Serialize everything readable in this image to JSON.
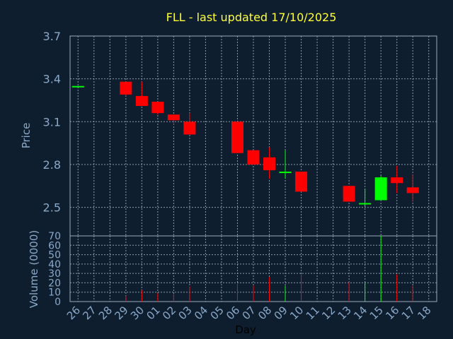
{
  "chart_data": {
    "type": "candlestick",
    "title": "FLL - last updated 17/10/2025",
    "xlabel": "Day",
    "ylabel": "Price",
    "volume_label": "Volume (0000)",
    "x_ticks": [
      "26",
      "27",
      "28",
      "29",
      "30",
      "01",
      "02",
      "03",
      "04",
      "05",
      "06",
      "07",
      "08",
      "09",
      "10",
      "11",
      "12",
      "13",
      "14",
      "15",
      "16",
      "17",
      "18"
    ],
    "price_ylim": [
      2.3,
      3.7
    ],
    "price_ticks": [
      "2.5",
      "2.8",
      "3.1",
      "3.4",
      "3.7"
    ],
    "volume_ylim": [
      0,
      70
    ],
    "volume_ticks": [
      "0",
      "10",
      "20",
      "30",
      "40",
      "50",
      "60",
      "70"
    ],
    "grid": true,
    "colors": {
      "up": "#00ff00",
      "down": "#ff0000",
      "title": "#ffff33",
      "axis_text": "#8aa9c8"
    },
    "candles": [
      {
        "day": "26",
        "open": 3.35,
        "high": 3.35,
        "low": 3.35,
        "close": 3.35,
        "volume": 0
      },
      {
        "day": "29",
        "open": 3.38,
        "high": 3.38,
        "low": 3.28,
        "close": 3.29,
        "volume": 6
      },
      {
        "day": "30",
        "open": 3.28,
        "high": 3.38,
        "low": 3.21,
        "close": 3.21,
        "volume": 12
      },
      {
        "day": "01",
        "open": 3.24,
        "high": 3.24,
        "low": 3.15,
        "close": 3.16,
        "volume": 9
      },
      {
        "day": "02",
        "open": 3.15,
        "high": 3.15,
        "low": 3.08,
        "close": 3.11,
        "volume": 8
      },
      {
        "day": "03",
        "open": 3.1,
        "high": 3.16,
        "low": 3.01,
        "close": 3.01,
        "volume": 16
      },
      {
        "day": "06",
        "open": 3.1,
        "high": 3.1,
        "low": 2.88,
        "close": 2.88,
        "volume": 19
      },
      {
        "day": "07",
        "open": 2.9,
        "high": 2.9,
        "low": 2.8,
        "close": 2.8,
        "volume": 17
      },
      {
        "day": "08",
        "open": 2.85,
        "high": 2.92,
        "low": 2.7,
        "close": 2.76,
        "volume": 26
      },
      {
        "day": "09",
        "open": 2.74,
        "high": 2.9,
        "low": 2.7,
        "close": 2.75,
        "volume": 17
      },
      {
        "day": "10",
        "open": 2.75,
        "high": 2.75,
        "low": 2.61,
        "close": 2.61,
        "volume": 29
      },
      {
        "day": "13",
        "open": 2.65,
        "high": 2.65,
        "low": 2.54,
        "close": 2.54,
        "volume": 21
      },
      {
        "day": "14",
        "open": 2.53,
        "high": 2.63,
        "low": 2.51,
        "close": 2.53,
        "volume": 21
      },
      {
        "day": "15",
        "open": 2.55,
        "high": 2.72,
        "low": 2.55,
        "close": 2.71,
        "volume": 70
      },
      {
        "day": "16",
        "open": 2.71,
        "high": 2.79,
        "low": 2.6,
        "close": 2.67,
        "volume": 29
      },
      {
        "day": "17",
        "open": 2.64,
        "high": 2.73,
        "low": 2.54,
        "close": 2.6,
        "volume": 17
      }
    ]
  }
}
